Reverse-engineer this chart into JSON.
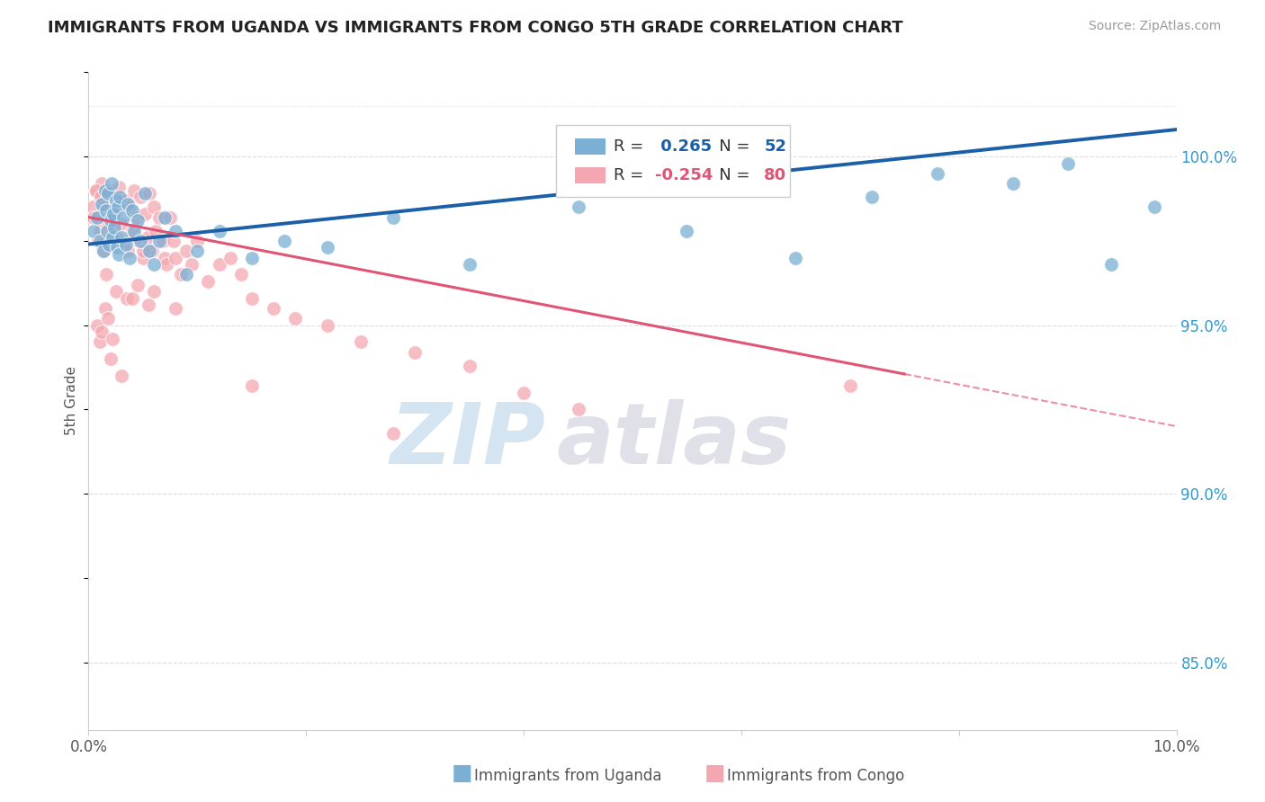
{
  "title": "IMMIGRANTS FROM UGANDA VS IMMIGRANTS FROM CONGO 5TH GRADE CORRELATION CHART",
  "source": "Source: ZipAtlas.com",
  "ylabel": "5th Grade",
  "xlim": [
    0.0,
    10.0
  ],
  "ylim": [
    83.0,
    102.5
  ],
  "x_ticks": [
    0.0,
    2.0,
    4.0,
    6.0,
    8.0,
    10.0
  ],
  "x_tick_labels": [
    "0.0%",
    "",
    "",
    "",
    "",
    "10.0%"
  ],
  "y_tick_labels_right": [
    "85.0%",
    "90.0%",
    "95.0%",
    "100.0%"
  ],
  "y_ticks_right": [
    85.0,
    90.0,
    95.0,
    100.0
  ],
  "uganda_color": "#7bafd4",
  "congo_color": "#f4a7b0",
  "uganda_R": 0.265,
  "uganda_N": 52,
  "congo_R": -0.254,
  "congo_N": 80,
  "uganda_line_color": "#1a5fa8",
  "congo_line_color": "#e05575",
  "uganda_text_color": "#1a5fa8",
  "congo_text_color": "#e05575",
  "watermark_zip": "ZIP",
  "watermark_atlas": "atlas",
  "watermark_color_zip": "#b8d4e8",
  "watermark_color_atlas": "#c8c8d8",
  "uganda_scatter_x": [
    0.05,
    0.08,
    0.1,
    0.12,
    0.14,
    0.15,
    0.16,
    0.17,
    0.18,
    0.19,
    0.2,
    0.21,
    0.22,
    0.23,
    0.24,
    0.25,
    0.26,
    0.27,
    0.28,
    0.29,
    0.3,
    0.32,
    0.34,
    0.36,
    0.38,
    0.4,
    0.42,
    0.45,
    0.48,
    0.52,
    0.56,
    0.6,
    0.65,
    0.7,
    0.8,
    0.9,
    1.0,
    1.2,
    1.5,
    1.8,
    2.2,
    2.8,
    3.5,
    4.5,
    5.5,
    6.5,
    7.2,
    7.8,
    8.5,
    9.0,
    9.4,
    9.8
  ],
  "uganda_scatter_y": [
    97.8,
    98.2,
    97.5,
    98.6,
    97.2,
    99.0,
    98.4,
    97.8,
    98.9,
    97.4,
    98.1,
    99.2,
    97.6,
    98.3,
    97.9,
    98.7,
    97.3,
    98.5,
    97.1,
    98.8,
    97.6,
    98.2,
    97.4,
    98.6,
    97.0,
    98.4,
    97.8,
    98.1,
    97.5,
    98.9,
    97.2,
    96.8,
    97.5,
    98.2,
    97.8,
    96.5,
    97.2,
    97.8,
    97.0,
    97.5,
    97.3,
    98.2,
    96.8,
    98.5,
    97.8,
    97.0,
    98.8,
    99.5,
    99.2,
    99.8,
    96.8,
    98.5
  ],
  "congo_scatter_x": [
    0.04,
    0.06,
    0.08,
    0.1,
    0.12,
    0.14,
    0.16,
    0.18,
    0.2,
    0.22,
    0.24,
    0.26,
    0.28,
    0.3,
    0.32,
    0.34,
    0.36,
    0.38,
    0.4,
    0.42,
    0.44,
    0.46,
    0.48,
    0.5,
    0.52,
    0.54,
    0.56,
    0.58,
    0.6,
    0.62,
    0.65,
    0.68,
    0.7,
    0.72,
    0.75,
    0.78,
    0.8,
    0.85,
    0.9,
    0.95,
    1.0,
    1.1,
    1.2,
    1.3,
    1.4,
    1.5,
    1.7,
    1.9,
    2.2,
    2.5,
    3.0,
    3.5,
    4.0,
    4.5,
    0.15,
    0.25,
    0.35,
    0.45,
    0.55,
    0.1,
    0.2,
    0.08,
    0.12,
    0.18,
    0.22,
    0.3,
    0.4,
    0.5,
    0.6,
    1.5,
    0.8,
    2.8,
    7.0,
    0.05,
    0.07,
    0.09,
    0.11,
    0.13,
    0.16,
    0.19
  ],
  "congo_scatter_y": [
    98.5,
    99.0,
    98.2,
    97.8,
    99.2,
    98.6,
    97.5,
    98.8,
    99.0,
    97.9,
    98.3,
    97.6,
    99.1,
    98.0,
    97.4,
    98.7,
    97.2,
    98.5,
    97.8,
    99.0,
    98.2,
    97.5,
    98.8,
    97.0,
    98.3,
    97.6,
    98.9,
    97.2,
    98.5,
    97.8,
    98.2,
    97.5,
    97.0,
    96.8,
    98.2,
    97.5,
    97.0,
    96.5,
    97.2,
    96.8,
    97.5,
    96.3,
    96.8,
    97.0,
    96.5,
    95.8,
    95.5,
    95.2,
    95.0,
    94.5,
    94.2,
    93.8,
    93.0,
    92.5,
    95.5,
    96.0,
    95.8,
    96.2,
    95.6,
    94.5,
    94.0,
    95.0,
    94.8,
    95.2,
    94.6,
    93.5,
    95.8,
    97.2,
    96.0,
    93.2,
    95.5,
    91.8,
    93.2,
    98.2,
    99.0,
    97.5,
    98.8,
    97.2,
    96.5,
    98.0
  ],
  "uganda_line_x0": 0.0,
  "uganda_line_y0": 97.4,
  "uganda_line_x1": 10.0,
  "uganda_line_y1": 100.8,
  "congo_line_x0": 0.0,
  "congo_line_y0": 98.2,
  "congo_line_x1": 10.0,
  "congo_line_y1": 92.0,
  "congo_solid_end": 7.5,
  "background_color": "#ffffff",
  "grid_color": "#dddddd",
  "spine_color": "#cccccc",
  "title_fontsize": 13,
  "tick_fontsize": 12,
  "right_tick_color": "#3399cc"
}
